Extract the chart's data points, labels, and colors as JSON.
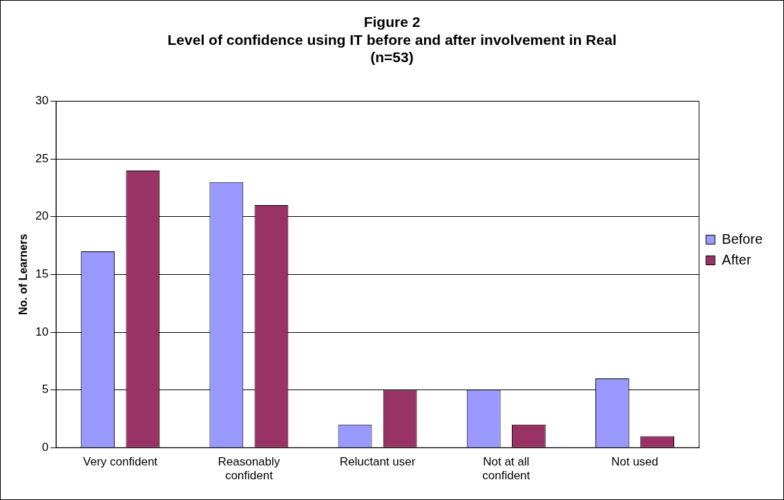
{
  "chart_data": {
    "type": "bar",
    "title": "Figure 2\nLevel of confidence using IT before and after involvement in Real\n(n=53)",
    "ylabel": "No. of Learners",
    "categories": [
      "Very confident",
      "Reasonably confident",
      "Reluctant user",
      "Not at all confident",
      "Not used"
    ],
    "series": [
      {
        "name": "Before",
        "color": "#9999ff",
        "values": [
          17,
          23,
          2,
          5,
          6
        ]
      },
      {
        "name": "After",
        "color": "#993366",
        "values": [
          24,
          21,
          5,
          2,
          1
        ]
      }
    ],
    "ylim": [
      0,
      30
    ],
    "yticks": [
      0,
      5,
      10,
      15,
      20,
      25,
      30
    ],
    "grid": "y",
    "legend": "right"
  }
}
